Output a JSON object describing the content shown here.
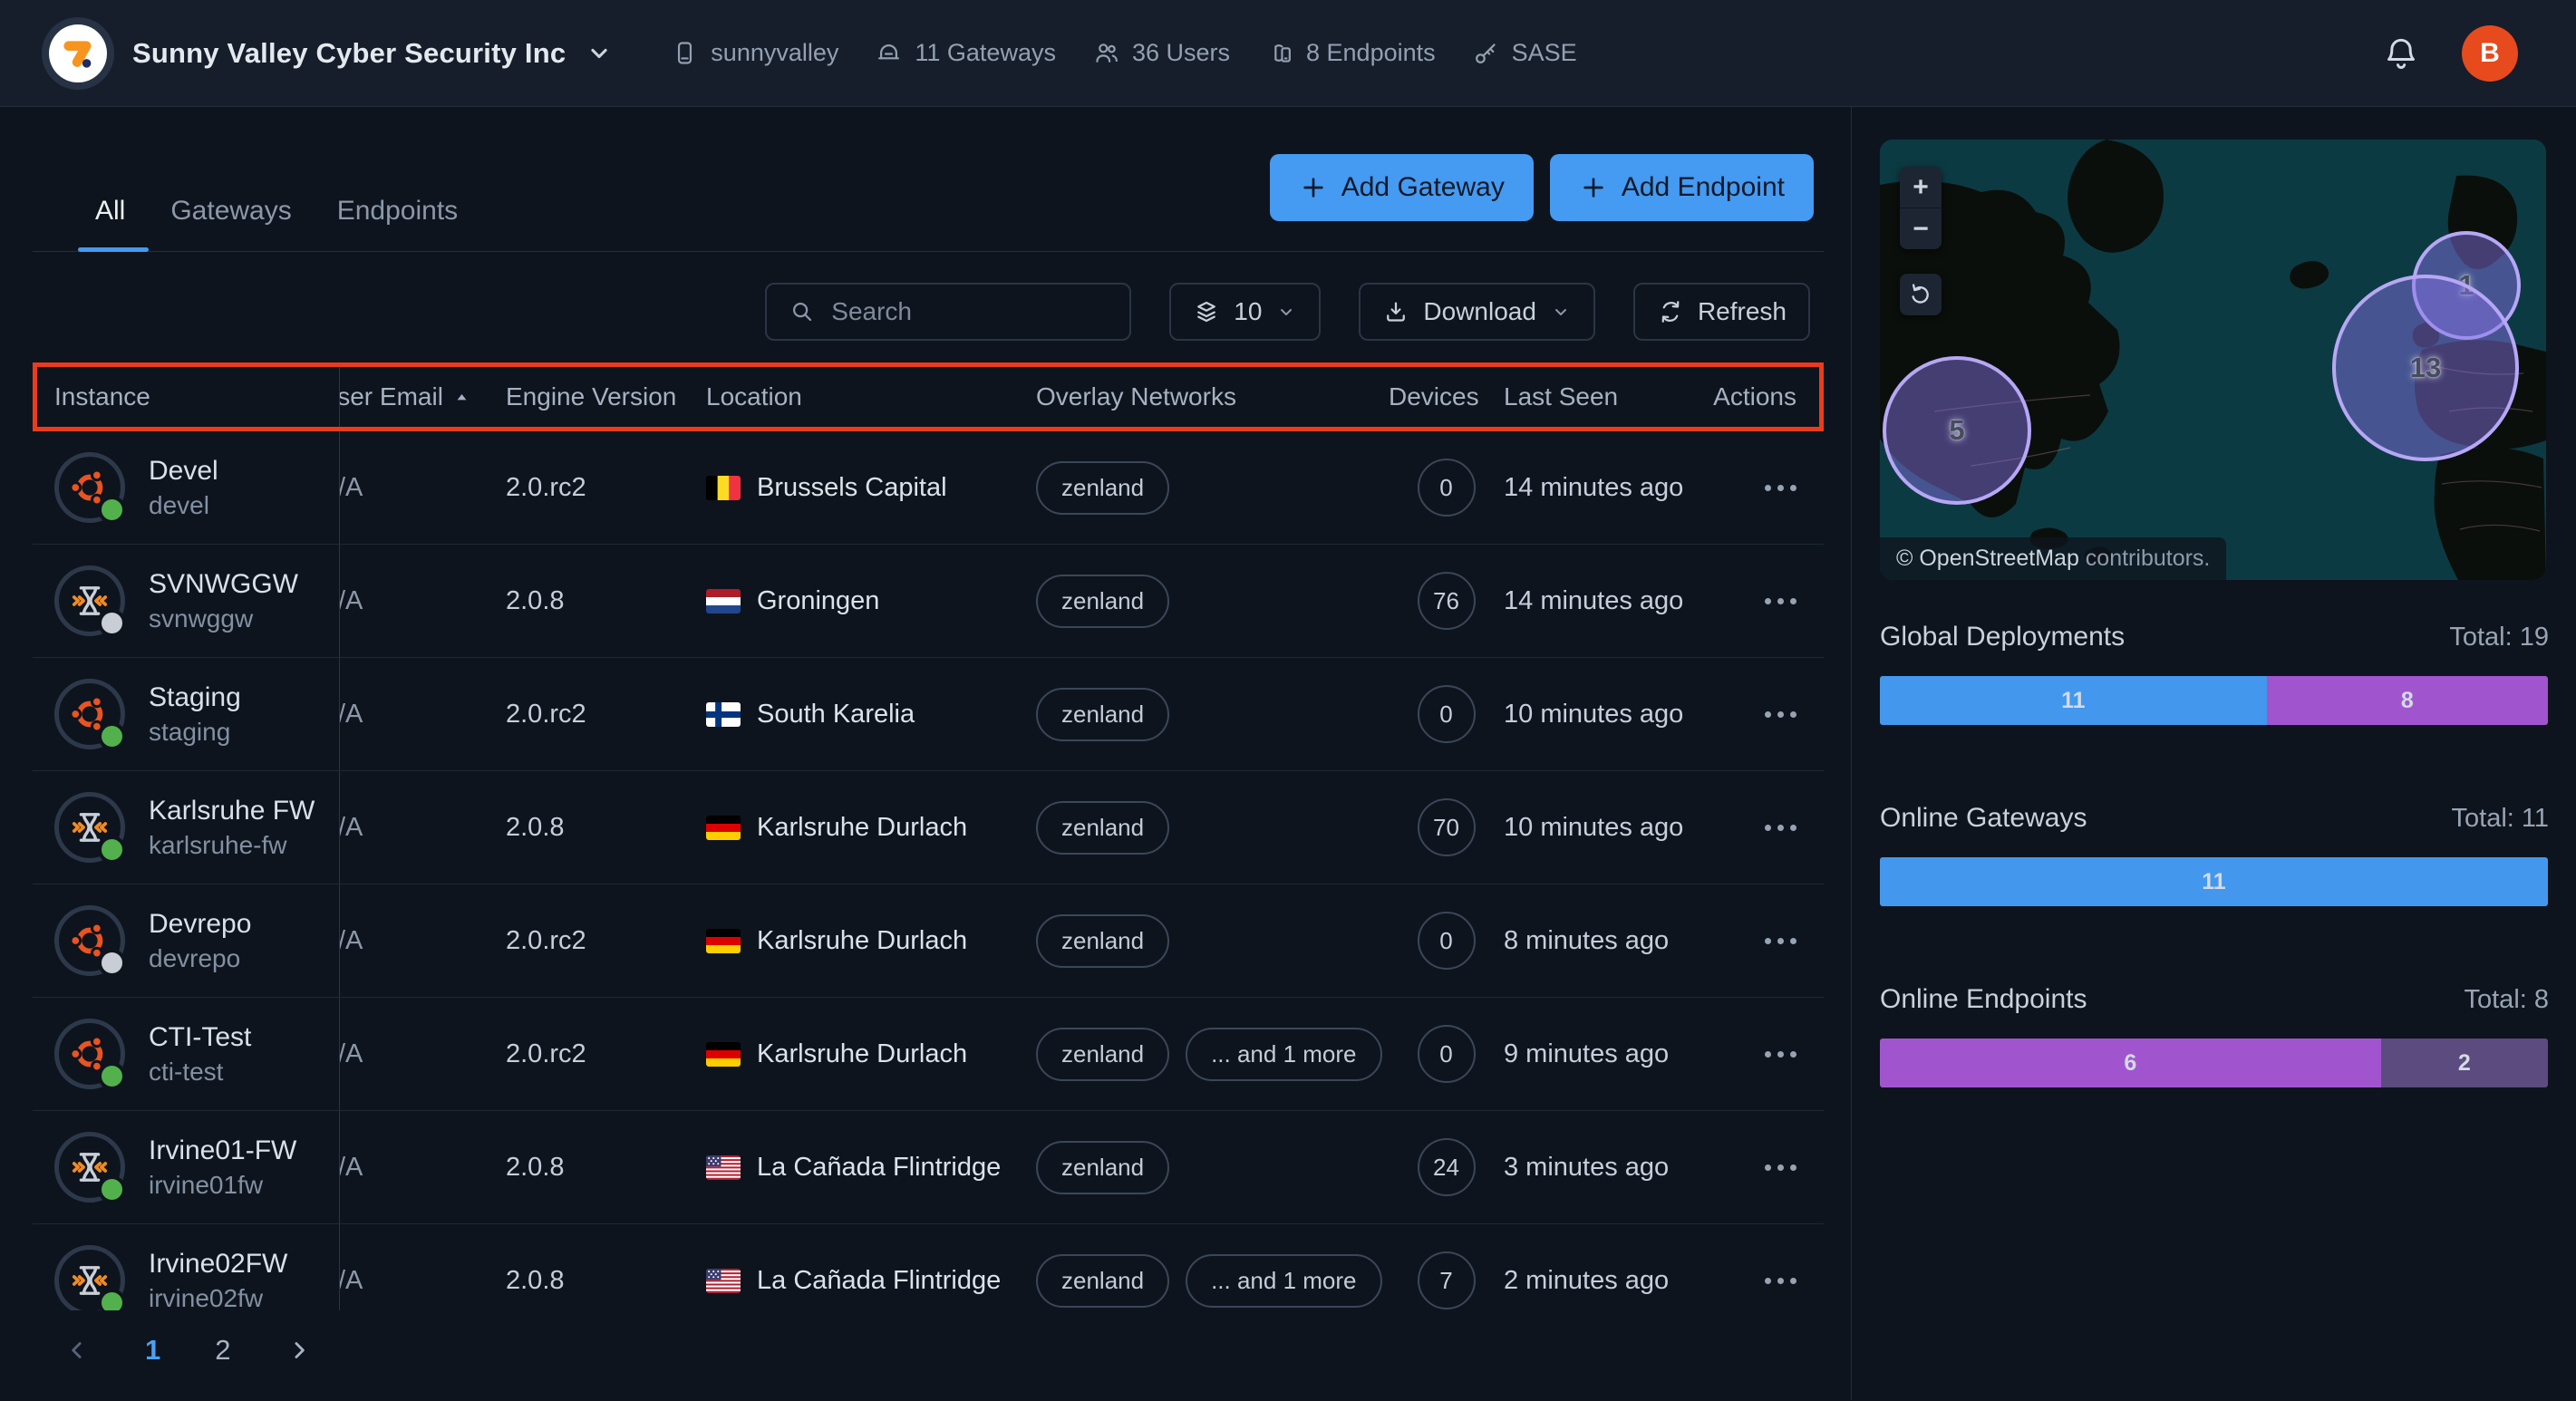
{
  "header": {
    "org_name": "Sunny Valley Cyber Security Inc",
    "stats": [
      {
        "icon": "appliance-icon",
        "label": "sunnyvalley"
      },
      {
        "icon": "gateways-icon",
        "label": "11 Gateways"
      },
      {
        "icon": "users-icon",
        "label": "36 Users"
      },
      {
        "icon": "endpoints-icon",
        "label": "8 Endpoints"
      },
      {
        "icon": "sase-key-icon",
        "label": "SASE"
      }
    ],
    "avatar_initial": "B"
  },
  "tabs": [
    {
      "label": "All",
      "active": true
    },
    {
      "label": "Gateways",
      "active": false
    },
    {
      "label": "Endpoints",
      "active": false
    }
  ],
  "buttons": {
    "add_gateway": "Add Gateway",
    "add_endpoint": "Add Endpoint"
  },
  "toolbar": {
    "search_placeholder": "Search",
    "page_size": "10",
    "download_label": "Download",
    "refresh_label": "Refresh"
  },
  "table": {
    "columns": [
      "Instance",
      "User Email",
      "Engine Version",
      "Location",
      "Overlay Networks",
      "Devices",
      "Last Seen",
      "Actions"
    ],
    "sort": {
      "column": "User Email",
      "direction": "asc"
    },
    "rows": [
      {
        "name": "Devel",
        "slug": "devel",
        "os": "ubuntu",
        "status": "online",
        "user_email": "N/A",
        "engine_version": "2.0.rc2",
        "country": "BE",
        "location": "Brussels Capital",
        "overlay_networks": [
          "zenland"
        ],
        "devices": "0",
        "last_seen": "14 minutes ago"
      },
      {
        "name": "SVNWGGW",
        "slug": "svnwggw",
        "os": "opnsense",
        "status": "unknown",
        "user_email": "N/A",
        "engine_version": "2.0.8",
        "country": "NL",
        "location": "Groningen",
        "overlay_networks": [
          "zenland"
        ],
        "devices": "76",
        "last_seen": "14 minutes ago"
      },
      {
        "name": "Staging",
        "slug": "staging",
        "os": "ubuntu",
        "status": "online",
        "user_email": "N/A",
        "engine_version": "2.0.rc2",
        "country": "FI",
        "location": "South Karelia",
        "overlay_networks": [
          "zenland"
        ],
        "devices": "0",
        "last_seen": "10 minutes ago"
      },
      {
        "name": "Karlsruhe FW",
        "slug": "karlsruhe-fw",
        "os": "opnsense",
        "status": "online",
        "user_email": "N/A",
        "engine_version": "2.0.8",
        "country": "DE",
        "location": "Karlsruhe Durlach",
        "overlay_networks": [
          "zenland"
        ],
        "devices": "70",
        "last_seen": "10 minutes ago"
      },
      {
        "name": "Devrepo",
        "slug": "devrepo",
        "os": "ubuntu",
        "status": "unknown",
        "user_email": "N/A",
        "engine_version": "2.0.rc2",
        "country": "DE",
        "location": "Karlsruhe Durlach",
        "overlay_networks": [
          "zenland"
        ],
        "devices": "0",
        "last_seen": "8 minutes ago"
      },
      {
        "name": "CTI-Test",
        "slug": "cti-test",
        "os": "ubuntu",
        "status": "online",
        "user_email": "N/A",
        "engine_version": "2.0.rc2",
        "country": "DE",
        "location": "Karlsruhe Durlach",
        "overlay_networks": [
          "zenland",
          "... and 1 more"
        ],
        "devices": "0",
        "last_seen": "9 minutes ago"
      },
      {
        "name": "Irvine01-FW",
        "slug": "irvine01fw",
        "os": "opnsense",
        "status": "online",
        "user_email": "N/A",
        "engine_version": "2.0.8",
        "country": "US",
        "location": "La Cañada Flintridge",
        "overlay_networks": [
          "zenland"
        ],
        "devices": "24",
        "last_seen": "3 minutes ago"
      },
      {
        "name": "Irvine02FW",
        "slug": "irvine02fw",
        "os": "opnsense",
        "status": "online",
        "user_email": "N/A",
        "engine_version": "2.0.8",
        "country": "US",
        "location": "La Cañada Flintridge",
        "overlay_networks": [
          "zenland",
          "... and 1 more"
        ],
        "devices": "7",
        "last_seen": "2 minutes ago"
      }
    ]
  },
  "pagination": {
    "pages": [
      "1",
      "2"
    ],
    "active_page": "1"
  },
  "map": {
    "clusters": [
      {
        "count": "5",
        "region": "us-west"
      },
      {
        "count": "1",
        "region": "scandinavia"
      },
      {
        "count": "13",
        "region": "europe"
      }
    ],
    "zoom_in": "+",
    "zoom_out": "−",
    "attribution_link": "© OpenStreetMap",
    "attribution_rest": " contributors."
  },
  "panels": [
    {
      "title": "Global Deployments",
      "total": "Total: 19",
      "segments": [
        {
          "label": "11",
          "value": 11,
          "pct": 57.9,
          "color": "#4398ee"
        },
        {
          "label": "8",
          "value": 8,
          "pct": 42.1,
          "color": "#a055cf"
        }
      ]
    },
    {
      "title": "Online Gateways",
      "total": "Total: 11",
      "segments": [
        {
          "label": "11",
          "value": 11,
          "pct": 100,
          "color": "#4398ee"
        }
      ]
    },
    {
      "title": "Online Endpoints",
      "total": "Total: 8",
      "segments": [
        {
          "label": "6",
          "value": 6,
          "pct": 75,
          "color": "#a055cf"
        },
        {
          "label": "2",
          "value": 2,
          "pct": 25,
          "color": "#5b4b7f"
        }
      ]
    }
  ],
  "colors": {
    "accent_blue": "#4398ee",
    "accent_purple": "#a055cf",
    "muted_purple": "#5b4b7f",
    "annotation_red": "#ea3b1d",
    "online_green": "#52b14c",
    "offline_gray": "#c9ced6",
    "avatar_orange": "#e74a1d",
    "brand_orange": "#F7941D",
    "button_blue": "#459af2",
    "map_ocean_teal": "#0c3a43"
  }
}
